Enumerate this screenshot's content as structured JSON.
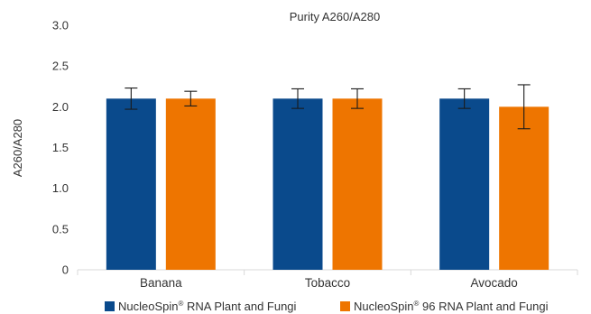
{
  "chart_data": {
    "type": "bar",
    "title": "Purity A260/A280",
    "xlabel": "",
    "ylabel": "A260/A280",
    "ylim": [
      0,
      3.0
    ],
    "yticks": [
      "0",
      "0.5",
      "1.0",
      "1.5",
      "2.0",
      "2.5",
      "3.0"
    ],
    "ytick_values": [
      0,
      0.5,
      1.0,
      1.5,
      2.0,
      2.5,
      3.0
    ],
    "categories": [
      "Banana",
      "Tobacco",
      "Avocado"
    ],
    "grid": false,
    "legend_position": "bottom",
    "series": [
      {
        "name_main": "NucleoSpin",
        "name_reg": "®",
        "name_rest": " RNA Plant and Fungi",
        "color": "#0a4a8c",
        "values": [
          2.1,
          2.1,
          2.1
        ],
        "errors": [
          0.13,
          0.12,
          0.12
        ]
      },
      {
        "name_main": "NucleoSpin",
        "name_reg": "®",
        "name_rest": " 96 RNA Plant and Fungi",
        "color": "#ee7500",
        "values": [
          2.1,
          2.1,
          2.0
        ],
        "errors": [
          0.09,
          0.12,
          0.27
        ]
      }
    ]
  }
}
